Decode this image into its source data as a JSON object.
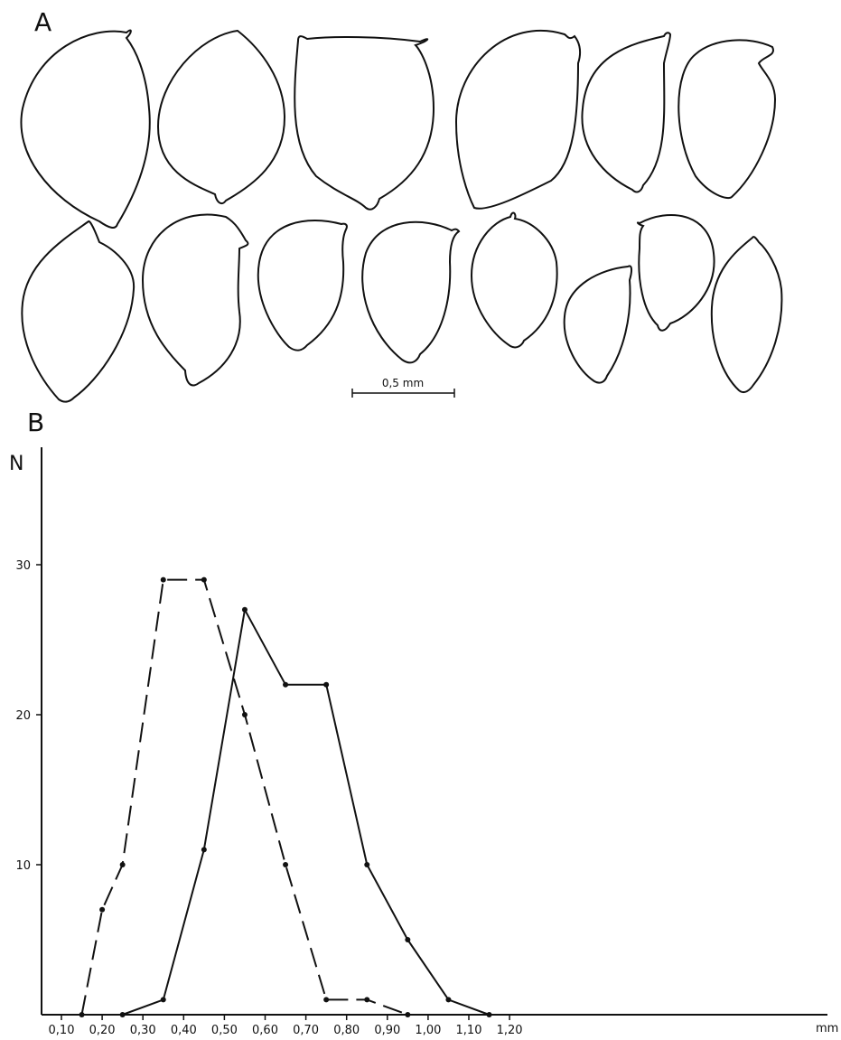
{
  "panels": {
    "a_label": "A",
    "b_label": "B"
  },
  "scale_bar": {
    "label": "0,5 mm"
  },
  "chart_data": {
    "type": "line",
    "title": "",
    "ylabel": "N",
    "xlabel": "",
    "x_unit": "mm",
    "xlim": [
      0.08,
      1.25
    ],
    "ylim": [
      0,
      34
    ],
    "x_ticks": [
      0.1,
      0.2,
      0.3,
      0.4,
      0.5,
      0.6,
      0.7,
      0.8,
      0.9,
      1.0,
      1.1,
      1.2
    ],
    "x_tick_labels": [
      "0,10",
      "0,20",
      "0,30",
      "0,40",
      "0,50",
      "0,60",
      "0,70",
      "0,80",
      "0,90",
      "1,00",
      "1,10",
      "1,20"
    ],
    "y_ticks": [
      10,
      20,
      30
    ],
    "y_tick_labels": [
      "10",
      "20",
      "30"
    ],
    "grid": false,
    "series": [
      {
        "style": "dashed",
        "x": [
          0.15,
          0.2,
          0.25,
          0.35,
          0.45,
          0.55,
          0.65,
          0.75,
          0.85,
          0.95
        ],
        "y": [
          0,
          7,
          10,
          29,
          29,
          20,
          10,
          1,
          1,
          0
        ]
      },
      {
        "style": "solid",
        "x": [
          0.25,
          0.35,
          0.45,
          0.55,
          0.65,
          0.75,
          0.85,
          0.95,
          1.05,
          1.15
        ],
        "y": [
          0,
          1,
          11,
          27,
          22,
          22,
          10,
          5,
          1,
          0
        ]
      }
    ]
  }
}
